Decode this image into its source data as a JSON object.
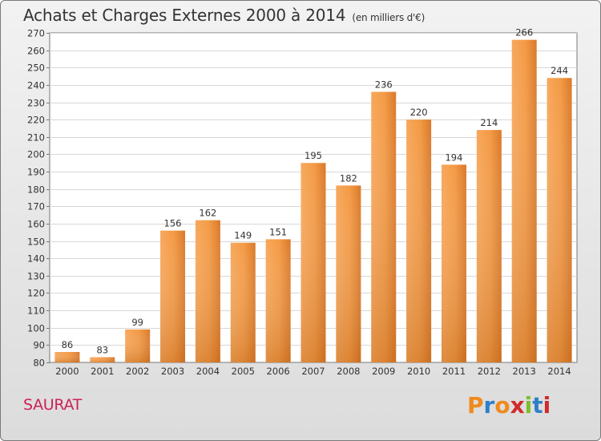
{
  "chart_data": {
    "type": "bar",
    "title": "Achats et Charges Externes 2000 à 2014",
    "subtitle": "(en milliers d'€)",
    "categories": [
      "2000",
      "2001",
      "2002",
      "2003",
      "2004",
      "2005",
      "2006",
      "2007",
      "2008",
      "2009",
      "2010",
      "2011",
      "2012",
      "2013",
      "2014"
    ],
    "values": [
      86,
      83,
      99,
      156,
      162,
      149,
      151,
      195,
      182,
      236,
      220,
      194,
      214,
      266,
      244
    ],
    "ylim": [
      80,
      270
    ],
    "yticks": [
      80,
      90,
      100,
      110,
      120,
      130,
      140,
      150,
      160,
      170,
      180,
      190,
      200,
      210,
      220,
      230,
      240,
      250,
      260,
      270
    ],
    "grid": true,
    "bar_color": "#f0923a"
  },
  "commune": "SAURAT",
  "logo": {
    "text": "Proxiti",
    "letter_colors": [
      "#f08a1e",
      "#2f7fc8",
      "#f08a1e",
      "#d22a2a",
      "#7bbf2a",
      "#2f7fc8",
      "#d22a2a"
    ]
  }
}
